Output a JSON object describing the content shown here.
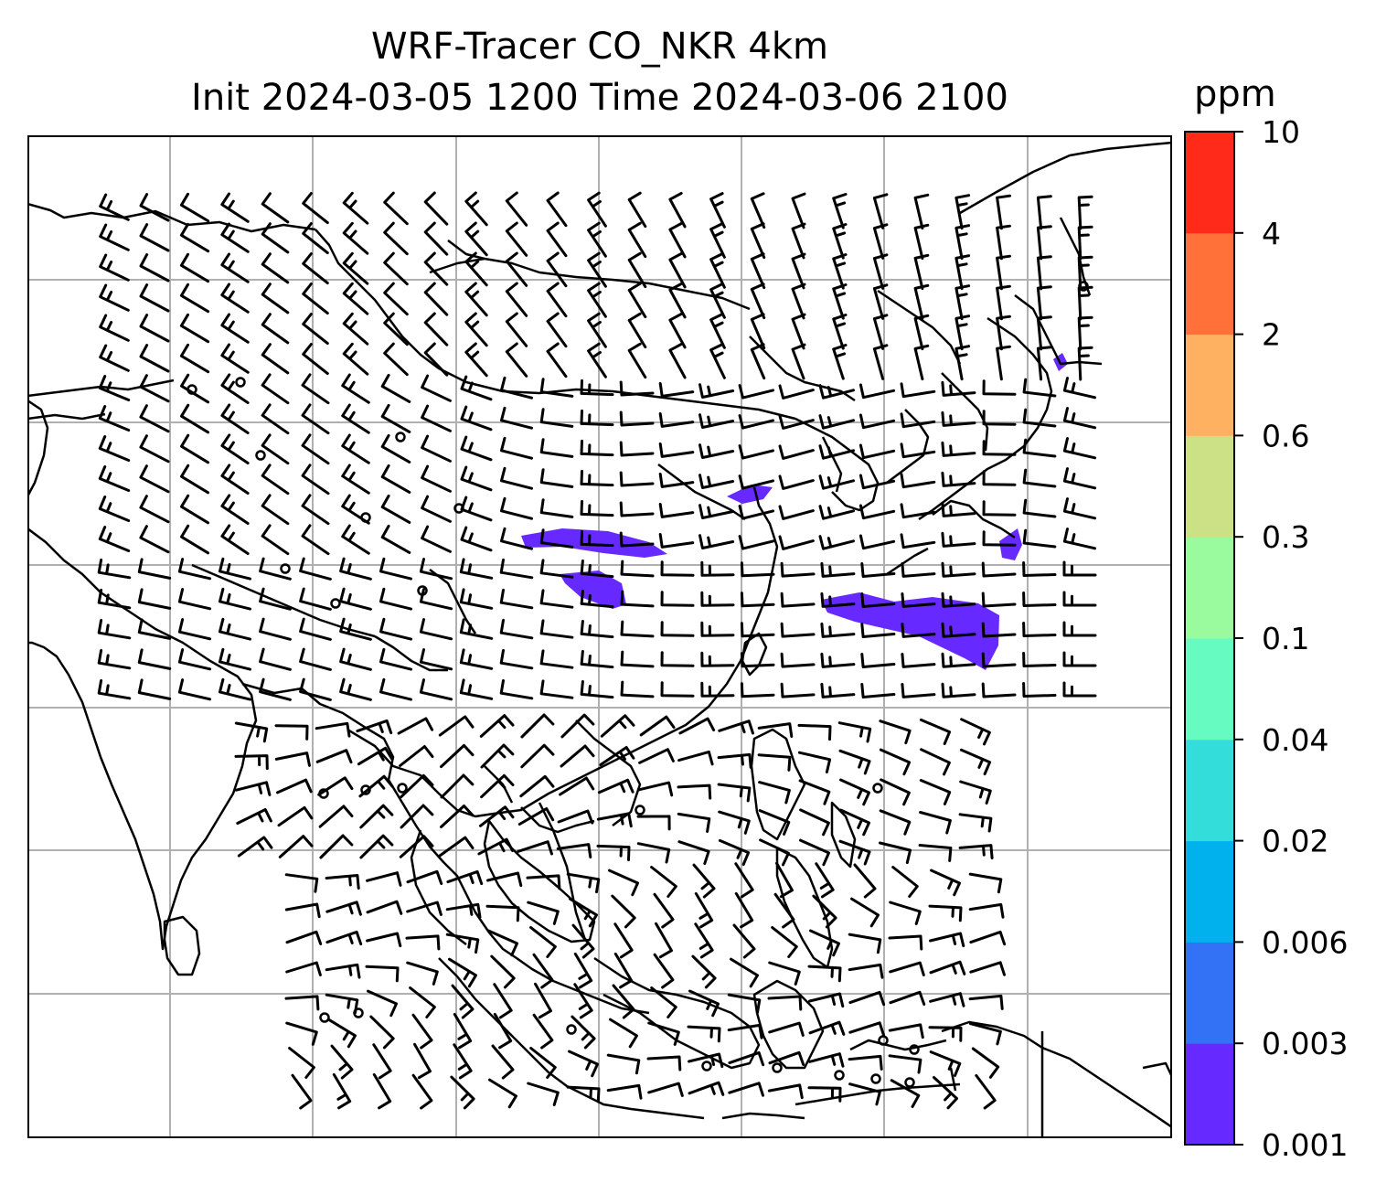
{
  "title_line1": "WRF-Tracer CO_NKR 4km",
  "title_line2": "Init 2024-03-05 1200 Time 2024-03-06 2100",
  "colorbar": {
    "unit": "ppm",
    "levels": [
      "0.001",
      "0.003",
      "0.006",
      "0.02",
      "0.04",
      "0.1",
      "0.3",
      "0.6",
      "2",
      "4",
      "10"
    ],
    "colors": [
      "#6629FF",
      "#3371F5",
      "#00B1EE",
      "#33DDD9",
      "#66FBC0",
      "#99FB9E",
      "#CCE185",
      "#FFB162",
      "#FF7139",
      "#FF2A19"
    ]
  },
  "map": {
    "gridlines": true,
    "coastlines": true,
    "wind_barbs": true,
    "tracer_color": "#6629FF"
  }
}
